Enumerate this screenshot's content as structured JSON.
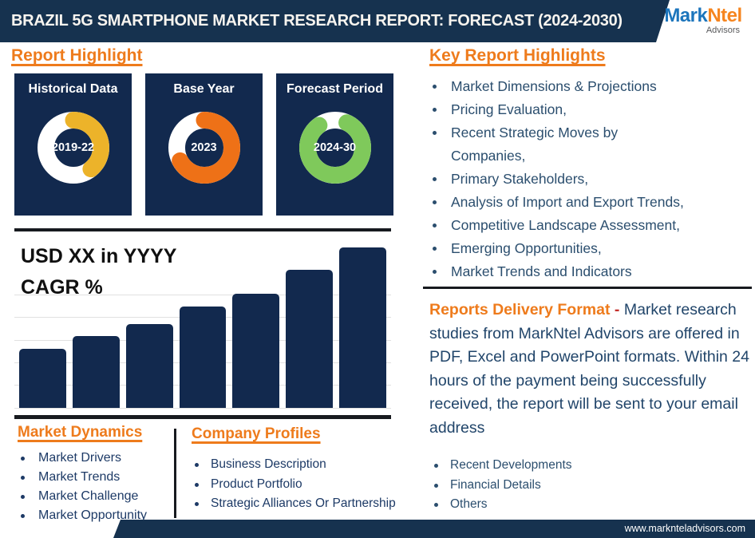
{
  "header": {
    "title": "BRAZIL 5G SMARTPHONE MARKET RESEARCH REPORT: FORECAST (2024-2030)",
    "logo": {
      "part1": "Mark",
      "part2": "Ntel",
      "subtitle": "Advisors"
    }
  },
  "left": {
    "section_title": "Report Highlight",
    "cards": [
      {
        "title": "Historical Data",
        "center_text": "2019-22",
        "arc_color": "#ecb32a",
        "fraction": 0.39,
        "start_deg": 0
      },
      {
        "title": "Base Year",
        "center_text": "2023",
        "arc_color": "#ee7117",
        "fraction": 0.67,
        "start_deg": 0
      },
      {
        "title": "Forecast Period",
        "center_text": "2024-30",
        "arc_color": "#7fc95b",
        "fraction": 0.83,
        "start_deg": 25
      }
    ],
    "chart_label_line1": "USD XX in YYYY",
    "chart_label_line2": "CAGR %",
    "market_dynamics": {
      "title": "Market Dynamics",
      "items": [
        "Market Drivers",
        "Market Trends",
        "Market Challenge",
        "Market Opportunity"
      ]
    },
    "company_profiles": {
      "title": "Company Profiles",
      "items": [
        "Business Description",
        "Product Portfolio",
        "Strategic Alliances Or Partnership"
      ]
    }
  },
  "right": {
    "section_title": "Key Report Highlights",
    "highlights": [
      "Market Dimensions & Projections",
      "Pricing Evaluation,",
      "Recent Strategic Moves by\nCompanies,",
      "Primary Stakeholders,",
      "Analysis of Import and Export Trends,",
      "Competitive Landscape Assessment,",
      "Emerging Opportunities,",
      "Market Trends and Indicators"
    ],
    "delivery": {
      "label": "Reports Delivery Format",
      "separator": "-",
      "text": "Market research studies from MarkNtel Advisors are offered in PDF, Excel and PowerPoint formats. Within 24 hours of the payment being successfully received, the report will be sent to your email address"
    },
    "extra_items": [
      "Recent Developments",
      "Financial Details",
      "Others"
    ]
  },
  "footer": {
    "url": "www.marknteladvisors.com"
  },
  "colors": {
    "navy_header": "#16324f",
    "navy_card": "#12294e",
    "bar_fill": "#12294e",
    "accent_orange": "#ee7b1c",
    "donut_yellow": "#ecb32a",
    "donut_orange": "#ee7117",
    "donut_green": "#7fc95b",
    "logo_blue": "#1c75bc",
    "logo_orange": "#f6851f",
    "separator_red": "#c5302c",
    "body_text_navy": "#2b4e6e"
  },
  "chart_data": [
    {
      "type": "bar",
      "title": "USD XX in YYYY CAGR %",
      "categories": [
        "",
        "",
        "",
        "",
        "",
        "",
        ""
      ],
      "values": [
        37,
        45,
        52,
        63,
        71,
        86,
        100
      ],
      "xlabel": "",
      "ylabel": "",
      "ylim": [
        0,
        100
      ],
      "grid": true,
      "legend": false,
      "note": "7 unlabeled bars showing steady growth; values are relative heights (% of tallest bar)",
      "bar_color": "#12294e"
    },
    {
      "type": "pie",
      "variant": "donut",
      "label": "Historical Data",
      "center_text": "2019-22",
      "filled_fraction": 0.39,
      "arc_color": "#ecb32a",
      "track_color": "#ffffff"
    },
    {
      "type": "pie",
      "variant": "donut",
      "label": "Base Year",
      "center_text": "2023",
      "filled_fraction": 0.67,
      "arc_color": "#ee7117",
      "track_color": "#ffffff"
    },
    {
      "type": "pie",
      "variant": "donut",
      "label": "Forecast Period",
      "center_text": "2024-30",
      "filled_fraction": 0.83,
      "arc_color": "#7fc95b",
      "track_color": "#ffffff"
    }
  ]
}
